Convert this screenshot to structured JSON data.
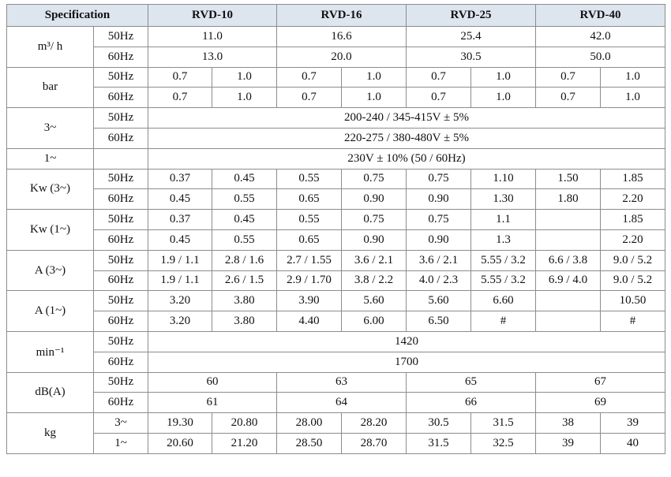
{
  "header": {
    "columns": [
      "Specification",
      "RVD-10",
      "RVD-16",
      "RVD-25",
      "RVD-40"
    ]
  },
  "table": {
    "groups": [
      {
        "label": "m³/ h",
        "rows": [
          {
            "freq": "50Hz",
            "cells": [
              "11.0",
              "16.6",
              "25.4",
              "42.0"
            ]
          },
          {
            "freq": "60Hz",
            "cells": [
              "13.0",
              "20.0",
              "30.5",
              "50.0"
            ]
          }
        ]
      },
      {
        "label": "bar",
        "rows": [
          {
            "freq": "50Hz",
            "cells": [
              "0.7",
              "1.0",
              "0.7",
              "1.0",
              "0.7",
              "1.0",
              "0.7",
              "1.0"
            ]
          },
          {
            "freq": "60Hz",
            "cells": [
              "0.7",
              "1.0",
              "0.7",
              "1.0",
              "0.7",
              "1.0",
              "0.7",
              "1.0"
            ]
          }
        ]
      },
      {
        "label": "3~",
        "rows": [
          {
            "freq": "50Hz",
            "cells": [
              "200-240 / 345-415V ± 5%"
            ]
          },
          {
            "freq": "60Hz",
            "cells": [
              "220-275 / 380-480V ± 5%"
            ]
          }
        ]
      },
      {
        "label": "1~",
        "rows": [
          {
            "freq": null,
            "cells": [
              "230V ± 10% (50 / 60Hz)"
            ]
          }
        ]
      },
      {
        "label": "Kw (3~)",
        "rows": [
          {
            "freq": "50Hz",
            "cells": [
              "0.37",
              "0.45",
              "0.55",
              "0.75",
              "0.75",
              "1.10",
              "1.50",
              "1.85"
            ]
          },
          {
            "freq": "60Hz",
            "cells": [
              "0.45",
              "0.55",
              "0.65",
              "0.90",
              "0.90",
              "1.30",
              "1.80",
              "2.20"
            ]
          }
        ]
      },
      {
        "label": "Kw (1~)",
        "rows": [
          {
            "freq": "50Hz",
            "cells": [
              "0.37",
              "0.45",
              "0.55",
              "0.75",
              "0.75",
              "1.1",
              null,
              "1.85"
            ]
          },
          {
            "freq": "60Hz",
            "cells": [
              "0.45",
              "0.55",
              "0.65",
              "0.90",
              "0.90",
              "1.3",
              null,
              "2.20"
            ]
          }
        ]
      },
      {
        "label": "A (3~)",
        "rows": [
          {
            "freq": "50Hz",
            "cells": [
              "1.9 / 1.1",
              "2.8 / 1.6",
              "2.7 / 1.55",
              "3.6 / 2.1",
              "3.6 / 2.1",
              "5.55 / 3.2",
              "6.6 / 3.8",
              "9.0 / 5.2"
            ]
          },
          {
            "freq": "60Hz",
            "cells": [
              "1.9 / 1.1",
              "2.6 / 1.5",
              "2.9 / 1.70",
              "3.8 / 2.2",
              "4.0 / 2.3",
              "5.55 / 3.2",
              "6.9 / 4.0",
              "9.0 / 5.2"
            ]
          }
        ]
      },
      {
        "label": "A (1~)",
        "rows": [
          {
            "freq": "50Hz",
            "cells": [
              "3.20",
              "3.80",
              "3.90",
              "5.60",
              "5.60",
              "6.60",
              null,
              "10.50"
            ]
          },
          {
            "freq": "60Hz",
            "cells": [
              "3.20",
              "3.80",
              "4.40",
              "6.00",
              "6.50",
              "#",
              null,
              "#"
            ]
          }
        ]
      },
      {
        "label": "min⁻¹",
        "rows": [
          {
            "freq": "50Hz",
            "cells": [
              "1420"
            ]
          },
          {
            "freq": "60Hz",
            "cells": [
              "1700"
            ]
          }
        ]
      },
      {
        "label": "dB(A)",
        "rows": [
          {
            "freq": "50Hz",
            "cells": [
              "60",
              "63",
              "65",
              "67"
            ]
          },
          {
            "freq": "60Hz",
            "cells": [
              "61",
              "64",
              "66",
              "69"
            ]
          }
        ]
      },
      {
        "label": "kg",
        "rows": [
          {
            "freq": "3~",
            "cells": [
              "19.30",
              "20.80",
              "28.00",
              "28.20",
              "30.5",
              "31.5",
              "38",
              "39"
            ]
          },
          {
            "freq": "1~",
            "cells": [
              "20.60",
              "21.20",
              "28.50",
              "28.70",
              "31.5",
              "32.5",
              "39",
              "40"
            ]
          }
        ]
      }
    ]
  }
}
